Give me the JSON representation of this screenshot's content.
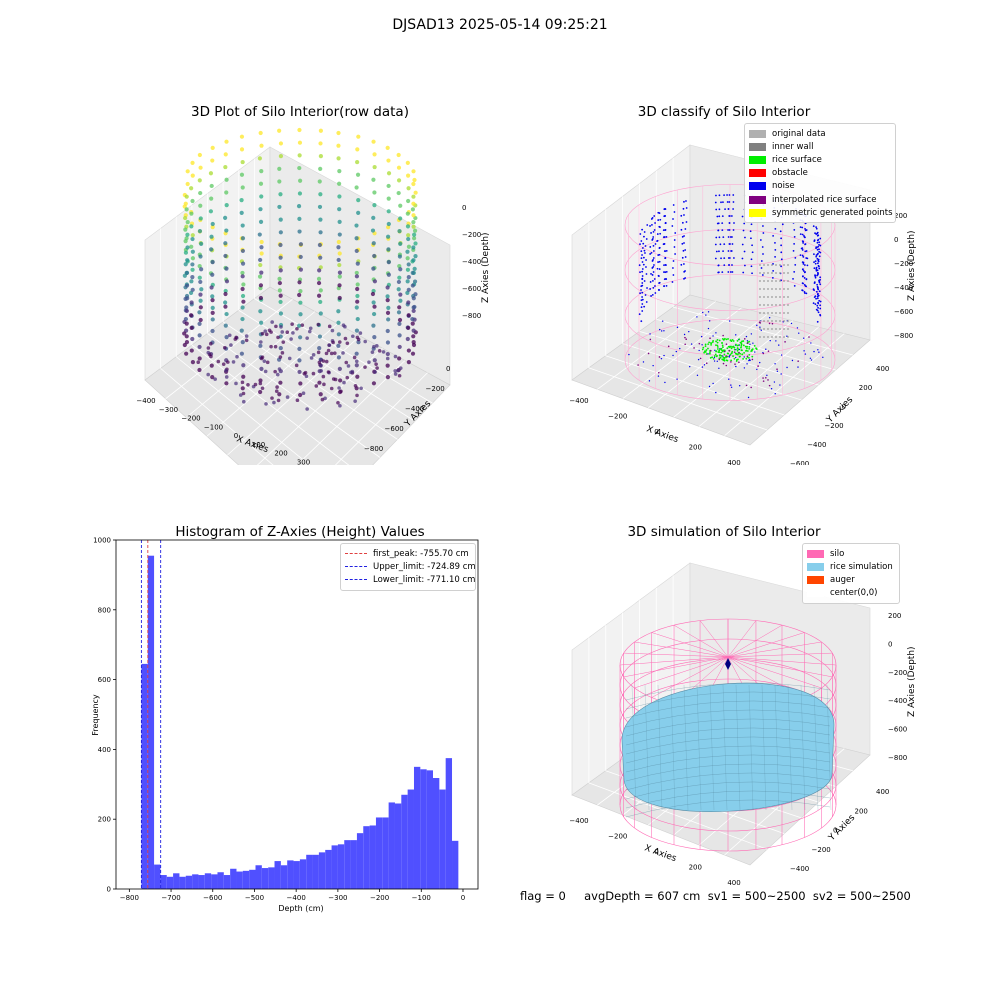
{
  "figure": {
    "suptitle": "DJSAD13 2025-05-14 09:25:21",
    "footer": "flag = 0     avgDepth = 607 cm  sv1 = 500~2500  sv2 = 500~2500"
  },
  "colors": {
    "histogram_bar": "#5050ff",
    "first_peak_line": "#e04040",
    "limit_lines": "#2020e0",
    "silo_wire": "#ff69b4",
    "rice_surface": "#87ceeb"
  },
  "panel_raw": {
    "title": "3D Plot of Silo Interior(row data)",
    "xlabel": "X Axies",
    "ylabel": "Y Axies",
    "zlabel": "Z Axies (Depth)",
    "xticks": [
      "−400",
      "−300",
      "−200",
      "−100",
      "0",
      "100",
      "200",
      "300",
      "400"
    ],
    "yticks": [
      "0",
      "−200",
      "−400",
      "−600",
      "−800"
    ],
    "zticks": [
      "0",
      "−200",
      "−400",
      "−600",
      "−800"
    ]
  },
  "panel_classify": {
    "title": "3D classify of Silo Interior",
    "xlabel": "X Axies",
    "ylabel": "Y Axies",
    "zlabel": "Z Axies (Depth)",
    "xticks": [
      "−400",
      "−200",
      "0",
      "200",
      "400"
    ],
    "yticks": [
      "400",
      "200",
      "0",
      "−200",
      "−400",
      "−600"
    ],
    "zticks": [
      "200",
      "0",
      "−200",
      "−400",
      "−600",
      "−800"
    ],
    "legend": [
      {
        "label": "original data",
        "color": "#b0b0b0"
      },
      {
        "label": "inner wall",
        "color": "#808080"
      },
      {
        "label": "rice surface",
        "color": "#00ee00"
      },
      {
        "label": "obstacle",
        "color": "#ff0000"
      },
      {
        "label": "noise",
        "color": "#0000ee"
      },
      {
        "label": "interpolated rice surface",
        "color": "#800080"
      },
      {
        "label": "symmetric generated points",
        "color": "#ffff00"
      }
    ]
  },
  "panel_sim": {
    "title": "3D simulation of Silo Interior",
    "xlabel": "X Axies",
    "ylabel": "Y Axies",
    "zlabel": "Z Axies (Depth)",
    "xticks": [
      "−400",
      "−200",
      "0",
      "200",
      "400"
    ],
    "yticks": [
      "400",
      "200",
      "0",
      "−200",
      "−400"
    ],
    "zticks": [
      "200",
      "0",
      "−200",
      "−400",
      "−600",
      "−800"
    ],
    "legend": [
      {
        "label": "silo",
        "color": "#ff69b4"
      },
      {
        "label": "rice simulation",
        "color": "#87ceeb"
      },
      {
        "label": "auger",
        "color": "#ff4500"
      },
      {
        "label": "center(0,0)",
        "color": "#ffffff"
      }
    ]
  },
  "chart_data": [
    {
      "type": "bar",
      "title": "Histogram of Z-Axies (Height) Values",
      "xlabel": "Depth (cm)",
      "ylabel": "Frequency",
      "xlim": [
        -800,
        0
      ],
      "ylim": [
        0,
        1000
      ],
      "xticks": [
        -800,
        -700,
        -600,
        -500,
        -400,
        -300,
        -200,
        -100,
        0
      ],
      "yticks": [
        0,
        200,
        400,
        600,
        800,
        1000
      ],
      "bin_start": -771.1,
      "bin_width": 15.2,
      "values": [
        645,
        955,
        70,
        40,
        35,
        45,
        35,
        38,
        42,
        40,
        45,
        42,
        48,
        40,
        58,
        50,
        52,
        55,
        68,
        60,
        62,
        80,
        68,
        82,
        80,
        85,
        98,
        98,
        105,
        112,
        125,
        128,
        140,
        140,
        160,
        180,
        182,
        205,
        205,
        248,
        245,
        270,
        285,
        350,
        343,
        340,
        318,
        285,
        375,
        138
      ],
      "lines": [
        {
          "label": "first_peak: -755.70 cm",
          "x": -755.7,
          "color": "#e04040"
        },
        {
          "label": "Upper_limit: -724.89 cm",
          "x": -724.89,
          "color": "#2020e0"
        },
        {
          "label": "Lower_limit: -771.10 cm",
          "x": -771.1,
          "color": "#2020e0"
        }
      ],
      "legend_position": "top-right",
      "grid": false
    }
  ]
}
